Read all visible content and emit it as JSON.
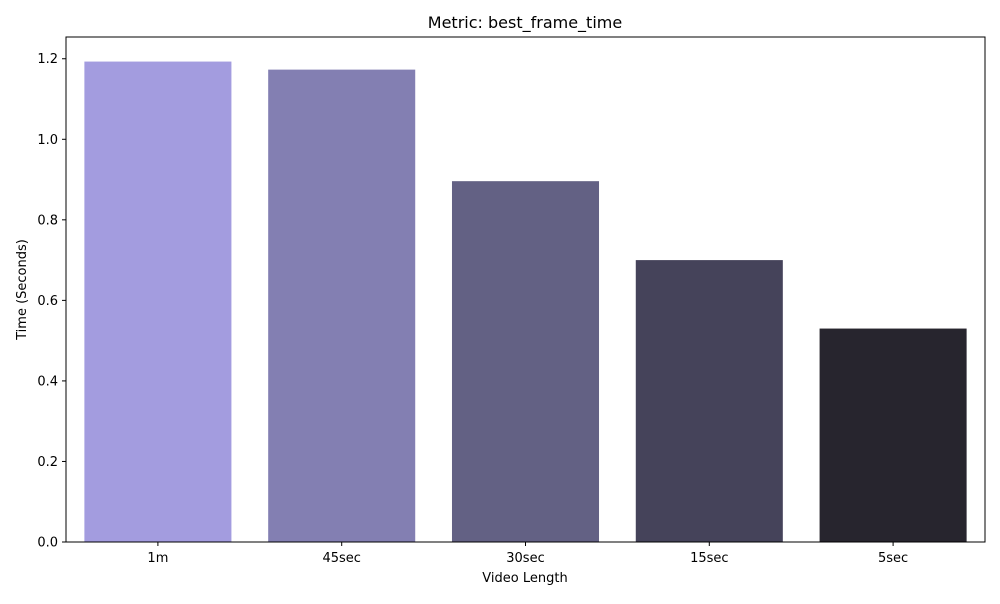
{
  "chart_data": {
    "type": "bar",
    "title": "Metric: best_frame_time",
    "xlabel": "Video Length",
    "ylabel": "Time (Seconds)",
    "categories": [
      "1m",
      "45sec",
      "30sec",
      "15sec",
      "5sec"
    ],
    "values": [
      1.193,
      1.173,
      0.896,
      0.7,
      0.53
    ],
    "colors": [
      "#a39cdf",
      "#837fb2",
      "#636184",
      "#45435a",
      "#27252e"
    ],
    "ylim": [
      0,
      1.254
    ],
    "yticks": [
      0.0,
      0.2,
      0.4,
      0.6,
      0.8,
      1.0,
      1.2
    ],
    "ytick_labels": [
      "0.0",
      "0.2",
      "0.4",
      "0.6",
      "0.8",
      "1.0",
      "1.2"
    ],
    "grid": false,
    "legend": "none"
  }
}
